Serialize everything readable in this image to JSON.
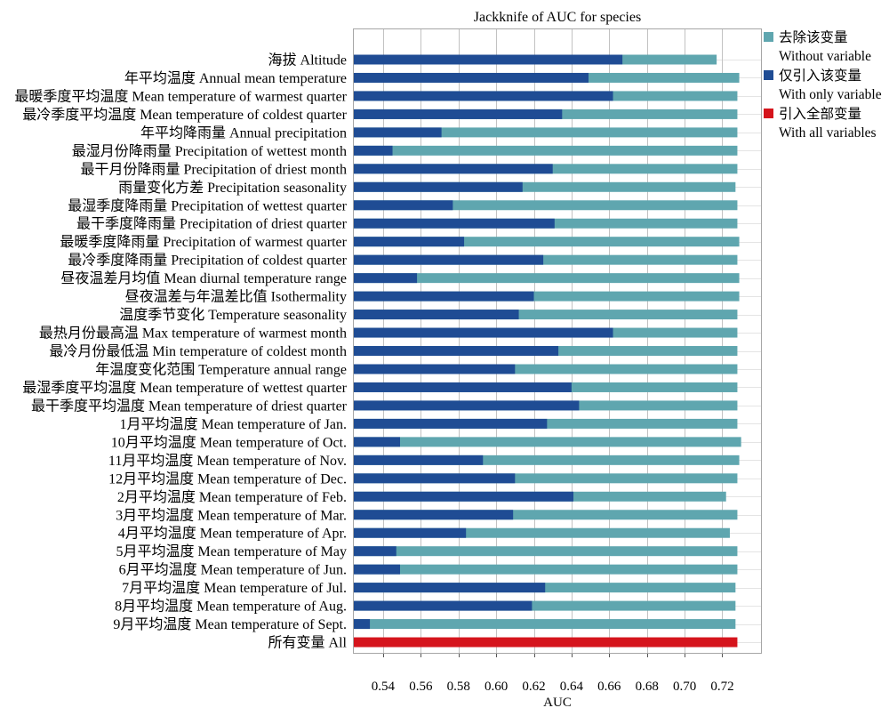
{
  "chart_data": {
    "type": "bar",
    "orientation": "horizontal",
    "bar_mode": "overlay",
    "title": "Jackknife of AUC for species",
    "xlabel": "AUC",
    "xlim": [
      0.524,
      0.741
    ],
    "xticks": [
      0.54,
      0.56,
      0.58,
      0.6,
      0.62,
      0.64,
      0.66,
      0.68,
      0.7,
      0.72
    ],
    "xtick_labels": [
      "0.54",
      "0.56",
      "0.58",
      "0.60",
      "0.62",
      "0.64",
      "0.66",
      "0.68",
      "0.70",
      "0.72"
    ],
    "grid": true,
    "legend": "right",
    "categories": [
      "海拔 Altitude",
      "年平均温度 Annual mean temperature",
      "最暖季度平均温度 Mean temperature of warmest quarter",
      "最冷季度平均温度 Mean temperature of coldest quarter",
      "年平均降雨量 Annual precipitation",
      "最湿月份降雨量 Precipitation of wettest month",
      "最干月份降雨量 Precipitation of driest month",
      "雨量变化方差 Precipitation seasonality",
      "最湿季度降雨量 Precipitation of wettest quarter",
      "最干季度降雨量 Precipitation of driest quarter",
      "最暖季度降雨量 Precipitation of warmest quarter",
      "最冷季度降雨量 Precipitation of coldest quarter",
      "昼夜温差月均值 Mean diurnal temperature range",
      "昼夜温差与年温差比值 Isothermality",
      "温度季节变化 Temperature seasonality",
      "最热月份最高温 Max temperature of warmest month",
      "最冷月份最低温 Min temperature of coldest month",
      "年温度变化范围 Temperature annual range",
      "最湿季度平均温度 Mean temperature of wettest quarter",
      "最干季度平均温度 Mean temperature of driest quarter",
      "1月平均温度 Mean temperature of Jan.",
      "10月平均温度 Mean temperature of Oct.",
      "11月平均温度 Mean temperature of Nov.",
      "12月平均温度 Mean temperature of Dec.",
      "2月平均温度 Mean temperature of Feb.",
      "3月平均温度 Mean temperature of Mar.",
      "4月平均温度 Mean temperature of Apr.",
      "5月平均温度 Mean temperature of May",
      "6月平均温度 Mean temperature of Jun.",
      "7月平均温度 Mean temperature of Jul.",
      "8月平均温度 Mean temperature of Aug.",
      "9月平均温度 Mean temperature of Sept.",
      "所有变量 All"
    ],
    "series": [
      {
        "name": "Without variable",
        "name_zh": "去除该变量",
        "color": "#5fa6af",
        "values": [
          0.717,
          0.729,
          0.728,
          0.728,
          0.728,
          0.728,
          0.728,
          0.727,
          0.728,
          0.728,
          0.729,
          0.728,
          0.729,
          0.729,
          0.728,
          0.728,
          0.728,
          0.728,
          0.728,
          0.728,
          0.728,
          0.73,
          0.729,
          0.728,
          0.722,
          0.728,
          0.724,
          0.728,
          0.728,
          0.727,
          0.727,
          0.727,
          null
        ]
      },
      {
        "name": "With only variable",
        "name_zh": "仅引入该变量",
        "color": "#1f4c94",
        "values": [
          0.667,
          0.649,
          0.662,
          0.635,
          0.571,
          0.545,
          0.63,
          0.614,
          0.577,
          0.631,
          0.583,
          0.625,
          0.558,
          0.62,
          0.612,
          0.662,
          0.633,
          0.61,
          0.64,
          0.644,
          0.627,
          0.549,
          0.593,
          0.61,
          0.641,
          0.609,
          0.584,
          0.547,
          0.549,
          0.626,
          0.619,
          0.533,
          null
        ]
      },
      {
        "name": "With all variables",
        "name_zh": "引入全部变量",
        "color": "#d5141c",
        "values": [
          null,
          null,
          null,
          null,
          null,
          null,
          null,
          null,
          null,
          null,
          null,
          null,
          null,
          null,
          null,
          null,
          null,
          null,
          null,
          null,
          null,
          null,
          null,
          null,
          null,
          null,
          null,
          null,
          null,
          null,
          null,
          null,
          0.728
        ]
      }
    ]
  }
}
